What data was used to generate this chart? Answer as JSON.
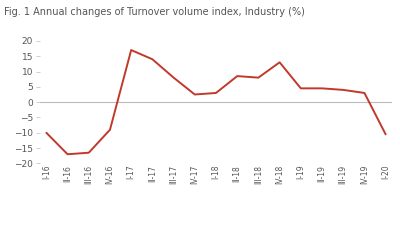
{
  "x_labels": [
    "I-16",
    "II-16",
    "III-16",
    "IV-16",
    "I-17",
    "II-17",
    "III-17",
    "IV-17",
    "I-18",
    "II-18",
    "III-18",
    "IV-18",
    "I-19",
    "II-19",
    "III-19",
    "IV-19",
    "I-20"
  ],
  "values": [
    -10,
    -17,
    -16.5,
    -9,
    17,
    14,
    8,
    2.5,
    3,
    8.5,
    8,
    13,
    4.5,
    4.5,
    4,
    3,
    -10.5
  ],
  "line_color": "#c0392b",
  "zero_line_color": "#bbbbbb",
  "title": "Fig. 1 Annual changes of Turnover volume index, Industry (%)",
  "title_fontsize": 7.0,
  "title_color": "#555555",
  "background_color": "#ffffff",
  "ylim": [
    -20,
    20
  ],
  "yticks": [
    -20,
    -15,
    -10,
    -5,
    0,
    5,
    10,
    15,
    20
  ],
  "tick_fontsize": 6.5,
  "xtick_fontsize": 5.5,
  "line_width": 1.4
}
